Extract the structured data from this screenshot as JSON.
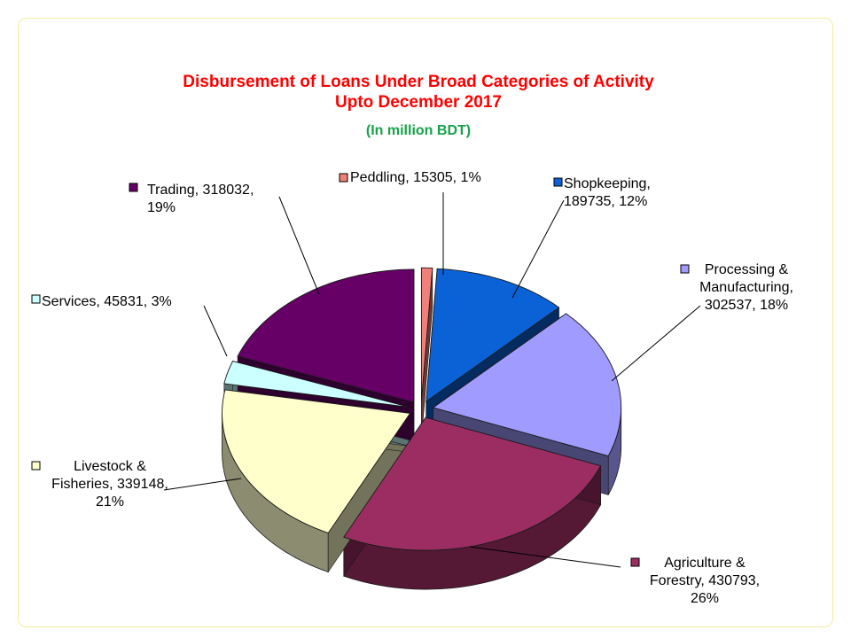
{
  "chart_data": {
    "type": "pie",
    "title": "Disbursement of Loans Under Broad Categories of Activity",
    "title_line2": "Upto December 2017",
    "subtitle": "(In million BDT)",
    "exploded": true,
    "three_d": true,
    "slices": [
      {
        "name": "Peddling",
        "value": 15305,
        "percent": 1,
        "color": "#f2807a",
        "label_lines": [
          "Peddling, 15305, 1%"
        ],
        "label_anchor": "start",
        "legend_marker": true
      },
      {
        "name": "Shopkeeping",
        "value": 189735,
        "percent": 12,
        "color": "#0a62d6",
        "label_lines": [
          "Shopkeeping,",
          "189735, 12%"
        ],
        "label_anchor": "start",
        "legend_marker": true
      },
      {
        "name": "Processing & Manufacturing",
        "value": 302537,
        "percent": 18,
        "color": "#a09cff",
        "label_lines": [
          "Processing &",
          "Manufacturing,",
          "302537, 18%"
        ],
        "label_anchor": "middle",
        "legend_marker": true
      },
      {
        "name": "Agriculture & Forestry",
        "value": 430793,
        "percent": 26,
        "color": "#9b2d62",
        "label_lines": [
          "Agriculture &",
          "Forestry, 430793,",
          "26%"
        ],
        "label_anchor": "middle",
        "legend_marker": true
      },
      {
        "name": "Livestock & Fisheries",
        "value": 339148,
        "percent": 21,
        "color": "#ffffcc",
        "label_lines": [
          "Livestock &",
          "Fisheries, 339148,",
          "21%"
        ],
        "label_anchor": "middle",
        "legend_marker": true
      },
      {
        "name": "Services",
        "value": 45831,
        "percent": 3,
        "color": "#ccffff",
        "label_lines": [
          "Services, 45831, 3%"
        ],
        "label_anchor": "start",
        "legend_marker": true
      },
      {
        "name": "Trading",
        "value": 318032,
        "percent": 19,
        "color": "#660066",
        "label_lines": [
          "Trading, 318032,",
          "19%"
        ],
        "label_anchor": "start",
        "legend_marker": true
      }
    ]
  }
}
